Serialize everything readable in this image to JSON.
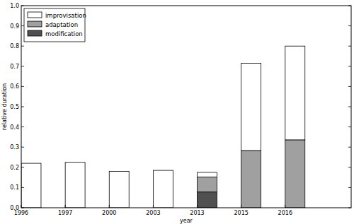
{
  "chart_data": {
    "type": "bar",
    "stacked": true,
    "legend": "upper left",
    "grid": false,
    "x_label": "year",
    "y_label": "relative duration",
    "categories": [
      "1996",
      "1997",
      "2000",
      "2003",
      "2013",
      "2015",
      "2016"
    ],
    "series": [
      {
        "name": "improvisation",
        "color": "#ffffff",
        "values": [
          0.22,
          0.225,
          0.18,
          0.185,
          0.023,
          0.432,
          0.464
        ]
      },
      {
        "name": "adaptation",
        "color": "#a0a0a0",
        "values": [
          0,
          0,
          0,
          0,
          0.074,
          0.283,
          0.336
        ]
      },
      {
        "name": "modification",
        "color": "#505050",
        "values": [
          0,
          0,
          0,
          0,
          0.078,
          0,
          0
        ]
      }
    ],
    "ylim": [
      0,
      1
    ],
    "yticks": [
      {
        "value": 0,
        "label": "0.0"
      },
      0.1,
      0.2,
      0.3,
      0.4,
      0.5,
      0.6,
      0.7,
      0.8,
      0.9,
      {
        "value": 1,
        "label": "1.0"
      }
    ]
  }
}
